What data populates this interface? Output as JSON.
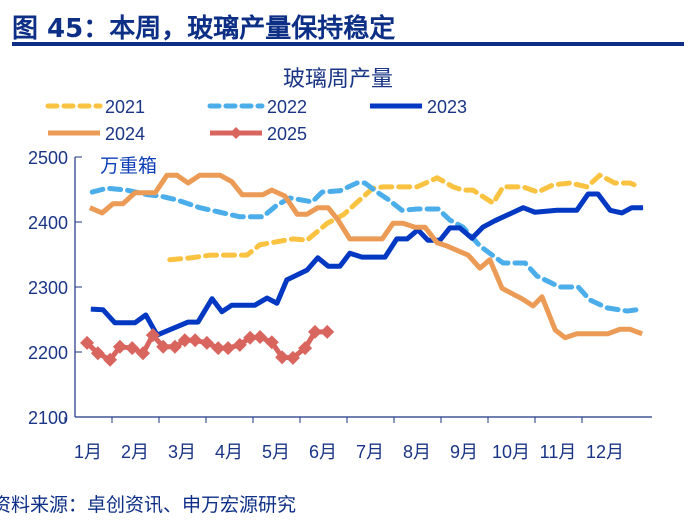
{
  "header": {
    "title": "图 45：本周，玻璃产量保持稳定"
  },
  "footer": {
    "source": "资料来源：卓创资讯、申万宏源研究"
  },
  "chart_data": {
    "type": "line",
    "title": "玻璃周产量",
    "ylabel": "万重箱",
    "ylim": [
      2100,
      2500
    ],
    "yticks": [
      "2100",
      "2200",
      "2300",
      "2400",
      "2500"
    ],
    "xlim": [
      1,
      13
    ],
    "xticks": [
      "1月",
      "2月",
      "3月",
      "4月",
      "5月",
      "6月",
      "7月",
      "8月",
      "9月",
      "10月",
      "11月",
      "12月"
    ],
    "legend_position": "top",
    "series": [
      {
        "name": "2021",
        "color": "#f9c241",
        "style": "dashed",
        "points": [
          [
            2.74,
            2342
          ],
          [
            3.21,
            2345
          ],
          [
            3.6,
            2349
          ],
          [
            4.38,
            2349
          ],
          [
            4.66,
            2365
          ],
          [
            5.36,
            2374
          ],
          [
            5.66,
            2372
          ],
          [
            6.09,
            2398
          ],
          [
            6.43,
            2411
          ],
          [
            7.06,
            2452
          ],
          [
            7.28,
            2454
          ],
          [
            8.0,
            2454
          ],
          [
            8.43,
            2468
          ],
          [
            8.77,
            2454
          ],
          [
            8.98,
            2449
          ],
          [
            9.19,
            2449
          ],
          [
            9.62,
            2429
          ],
          [
            9.83,
            2454
          ],
          [
            10.26,
            2454
          ],
          [
            10.57,
            2446
          ],
          [
            10.89,
            2457
          ],
          [
            11.26,
            2460
          ],
          [
            11.62,
            2454
          ],
          [
            11.89,
            2472
          ],
          [
            12.21,
            2460
          ],
          [
            12.53,
            2460
          ],
          [
            12.74,
            2454
          ]
        ]
      },
      {
        "name": "2022",
        "color": "#4baeea",
        "style": "dashed",
        "points": [
          [
            1.09,
            2446
          ],
          [
            1.4,
            2452
          ],
          [
            1.83,
            2449
          ],
          [
            2.26,
            2442
          ],
          [
            2.53,
            2440
          ],
          [
            2.89,
            2434
          ],
          [
            3.38,
            2422
          ],
          [
            3.81,
            2415
          ],
          [
            4.23,
            2408
          ],
          [
            4.72,
            2408
          ],
          [
            5.02,
            2426
          ],
          [
            5.3,
            2437
          ],
          [
            5.77,
            2431
          ],
          [
            5.98,
            2446
          ],
          [
            6.36,
            2448
          ],
          [
            6.72,
            2460
          ],
          [
            6.89,
            2460
          ],
          [
            7.17,
            2445
          ],
          [
            7.38,
            2435
          ],
          [
            7.68,
            2418
          ],
          [
            8.0,
            2420
          ],
          [
            8.45,
            2420
          ],
          [
            8.7,
            2403
          ],
          [
            8.98,
            2392
          ],
          [
            9.34,
            2363
          ],
          [
            9.83,
            2337
          ],
          [
            10.3,
            2337
          ],
          [
            10.55,
            2317
          ],
          [
            11.04,
            2300
          ],
          [
            11.43,
            2300
          ],
          [
            11.68,
            2280
          ],
          [
            12.04,
            2268
          ],
          [
            12.47,
            2263
          ],
          [
            12.79,
            2266
          ]
        ]
      },
      {
        "name": "2023",
        "color": "#0238c2",
        "style": "solid",
        "points": [
          [
            1.06,
            2266
          ],
          [
            1.32,
            2265
          ],
          [
            1.57,
            2245
          ],
          [
            2.0,
            2245
          ],
          [
            2.23,
            2257
          ],
          [
            2.47,
            2226
          ],
          [
            3.13,
            2246
          ],
          [
            3.34,
            2246
          ],
          [
            3.64,
            2282
          ],
          [
            3.85,
            2262
          ],
          [
            4.06,
            2272
          ],
          [
            4.55,
            2272
          ],
          [
            4.81,
            2283
          ],
          [
            5.02,
            2275
          ],
          [
            5.23,
            2311
          ],
          [
            5.66,
            2326
          ],
          [
            5.89,
            2345
          ],
          [
            6.11,
            2332
          ],
          [
            6.36,
            2332
          ],
          [
            6.57,
            2352
          ],
          [
            6.83,
            2346
          ],
          [
            7.32,
            2346
          ],
          [
            7.57,
            2374
          ],
          [
            7.79,
            2374
          ],
          [
            8.02,
            2388
          ],
          [
            8.23,
            2372
          ],
          [
            8.49,
            2372
          ],
          [
            8.7,
            2391
          ],
          [
            8.91,
            2391
          ],
          [
            9.17,
            2375
          ],
          [
            9.4,
            2392
          ],
          [
            9.66,
            2402
          ],
          [
            10.26,
            2422
          ],
          [
            10.51,
            2415
          ],
          [
            10.98,
            2418
          ],
          [
            11.4,
            2418
          ],
          [
            11.64,
            2443
          ],
          [
            11.85,
            2443
          ],
          [
            12.11,
            2418
          ],
          [
            12.36,
            2414
          ],
          [
            12.57,
            2422
          ],
          [
            12.81,
            2422
          ]
        ]
      },
      {
        "name": "2024",
        "color": "#eb9b55",
        "style": "solid",
        "points": [
          [
            1.04,
            2422
          ],
          [
            1.3,
            2414
          ],
          [
            1.53,
            2428
          ],
          [
            1.74,
            2428
          ],
          [
            2.0,
            2445
          ],
          [
            2.43,
            2445
          ],
          [
            2.68,
            2472
          ],
          [
            2.89,
            2472
          ],
          [
            3.13,
            2460
          ],
          [
            3.38,
            2472
          ],
          [
            3.81,
            2472
          ],
          [
            4.06,
            2462
          ],
          [
            4.28,
            2442
          ],
          [
            4.72,
            2442
          ],
          [
            4.91,
            2449
          ],
          [
            5.19,
            2440
          ],
          [
            5.45,
            2412
          ],
          [
            5.66,
            2412
          ],
          [
            5.89,
            2422
          ],
          [
            6.11,
            2422
          ],
          [
            6.32,
            2403
          ],
          [
            6.57,
            2374
          ],
          [
            7.26,
            2374
          ],
          [
            7.49,
            2398
          ],
          [
            7.7,
            2398
          ],
          [
            7.96,
            2392
          ],
          [
            8.17,
            2392
          ],
          [
            8.43,
            2368
          ],
          [
            8.64,
            2363
          ],
          [
            9.09,
            2349
          ],
          [
            9.34,
            2329
          ],
          [
            9.55,
            2342
          ],
          [
            9.81,
            2298
          ],
          [
            10.23,
            2282
          ],
          [
            10.47,
            2271
          ],
          [
            10.66,
            2285
          ],
          [
            10.94,
            2234
          ],
          [
            11.15,
            2222
          ],
          [
            11.4,
            2228
          ],
          [
            12.06,
            2228
          ],
          [
            12.32,
            2235
          ],
          [
            12.53,
            2235
          ],
          [
            12.79,
            2228
          ]
        ]
      },
      {
        "name": "2025",
        "color": "#d9655f",
        "style": "diamond",
        "points": [
          [
            0.98,
            2214
          ],
          [
            1.21,
            2198
          ],
          [
            1.47,
            2188
          ],
          [
            1.68,
            2208
          ],
          [
            1.94,
            2206
          ],
          [
            2.17,
            2198
          ],
          [
            2.38,
            2226
          ],
          [
            2.6,
            2208
          ],
          [
            2.85,
            2208
          ],
          [
            3.06,
            2218
          ],
          [
            3.28,
            2218
          ],
          [
            3.53,
            2214
          ],
          [
            3.77,
            2206
          ],
          [
            3.98,
            2206
          ],
          [
            4.23,
            2211
          ],
          [
            4.45,
            2222
          ],
          [
            4.66,
            2223
          ],
          [
            4.91,
            2215
          ],
          [
            5.13,
            2192
          ],
          [
            5.36,
            2191
          ],
          [
            5.62,
            2206
          ],
          [
            5.83,
            2231
          ],
          [
            6.09,
            2231
          ]
        ]
      }
    ]
  }
}
